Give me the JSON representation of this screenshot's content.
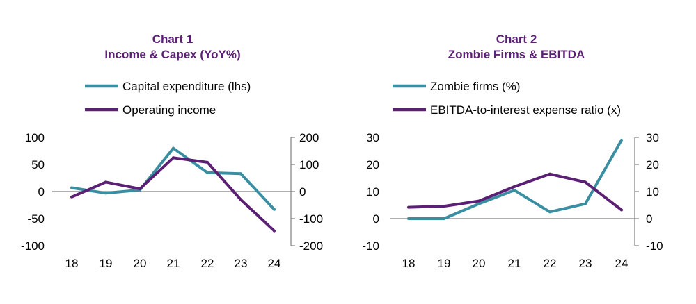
{
  "colors": {
    "teal": "#3a8ea1",
    "purple": "#5b1f73",
    "axis": "#808080"
  },
  "chart_data": [
    {
      "type": "line",
      "title_line1": "Chart 1",
      "title_line2": "Income & Capex (YoY%)",
      "categories": [
        "18",
        "19",
        "20",
        "21",
        "22",
        "23",
        "24"
      ],
      "series": [
        {
          "name": "Capital expenditure (lhs)",
          "axis": "left",
          "color": "teal",
          "values": [
            7,
            -3,
            3,
            80,
            35,
            33,
            -33
          ]
        },
        {
          "name": "Operating income",
          "axis": "right",
          "color": "purple",
          "values": [
            -20,
            35,
            10,
            125,
            108,
            -30,
            -145
          ]
        }
      ],
      "left_axis": {
        "min": -100,
        "max": 100,
        "ticks": [
          "100",
          "50",
          "0",
          "-50",
          "-100"
        ]
      },
      "right_axis": {
        "min": -200,
        "max": 200,
        "ticks": [
          "200",
          "100",
          "0",
          "-100",
          "-200"
        ]
      }
    },
    {
      "type": "line",
      "title_line1": "Chart 2",
      "title_line2": "Zombie Firms & EBITDA",
      "categories": [
        "18",
        "19",
        "20",
        "21",
        "22",
        "23",
        "24"
      ],
      "series": [
        {
          "name": "Zombie firms (%)",
          "axis": "left",
          "color": "teal",
          "values": [
            0,
            0,
            5.5,
            10.5,
            2.5,
            5.5,
            29
          ]
        },
        {
          "name": "EBITDA-to-interest expense ratio (x)",
          "axis": "right",
          "color": "purple",
          "values": [
            4.2,
            4.6,
            6.5,
            11.8,
            16.5,
            13.5,
            3.2
          ]
        }
      ],
      "left_axis": {
        "min": -10,
        "max": 30,
        "ticks": [
          "30",
          "20",
          "10",
          "0",
          "-10"
        ]
      },
      "right_axis": {
        "min": -10,
        "max": 30,
        "ticks": [
          "30",
          "20",
          "10",
          "0",
          "-10"
        ]
      }
    }
  ]
}
